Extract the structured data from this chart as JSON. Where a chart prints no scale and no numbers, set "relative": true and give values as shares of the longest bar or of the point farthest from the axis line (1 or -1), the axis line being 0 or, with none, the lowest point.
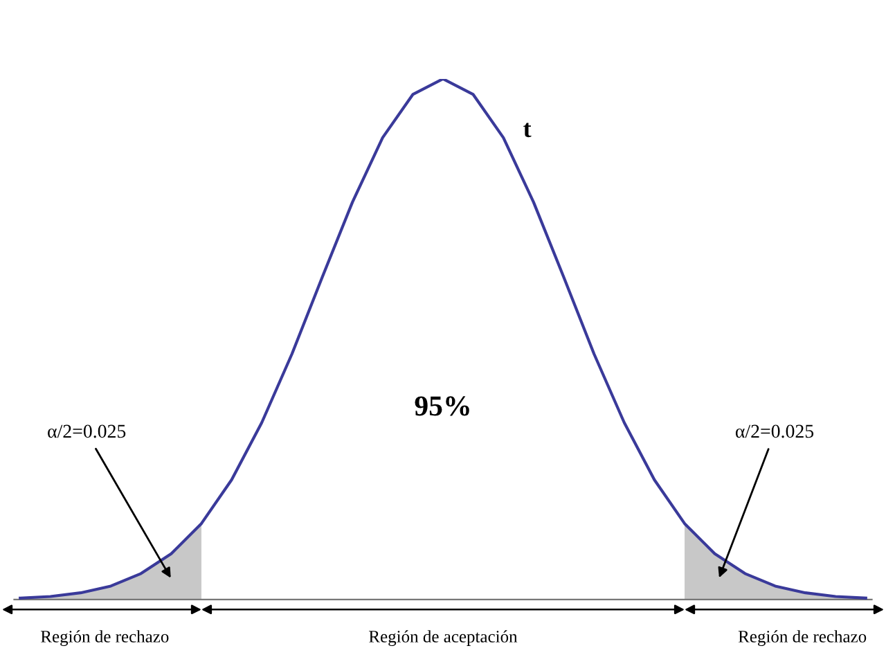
{
  "chart_data": {
    "type": "line",
    "relative": true,
    "tick_labels": false,
    "categories": [
      null,
      null,
      null,
      null,
      null,
      null,
      null,
      null,
      null,
      null,
      null,
      null,
      null,
      null,
      null,
      null,
      null,
      null,
      null,
      null,
      null,
      null,
      null,
      null,
      null,
      null,
      null,
      null,
      null
    ],
    "series": [
      {
        "type": "area",
        "color": "#c8c8c8",
        "values": [
          0.003,
          0.006,
          0.013,
          0.026,
          0.05,
          0.088,
          0.146,
          null,
          null,
          null,
          null,
          null,
          null,
          null,
          null,
          null,
          null,
          null,
          null,
          null,
          null,
          null,
          0.146,
          0.088,
          0.05,
          0.026,
          0.013,
          0.006,
          0.003
        ]
      },
      {
        "color": "#3a3a9a",
        "values": [
          0.003,
          0.006,
          0.013,
          0.026,
          0.05,
          0.088,
          0.146,
          0.23,
          0.34,
          0.472,
          0.619,
          0.763,
          0.887,
          0.97,
          1,
          0.97,
          0.887,
          0.763,
          0.619,
          0.472,
          0.34,
          0.23,
          0.146,
          0.088,
          0.05,
          0.026,
          0.013,
          0.006,
          0.003
        ]
      }
    ],
    "annotations": [
      "t",
      "95%",
      "α/2=0.025",
      "α/2=0.025",
      "Región de rechazo",
      "Región de aceptación",
      "Región de rechazo"
    ]
  }
}
